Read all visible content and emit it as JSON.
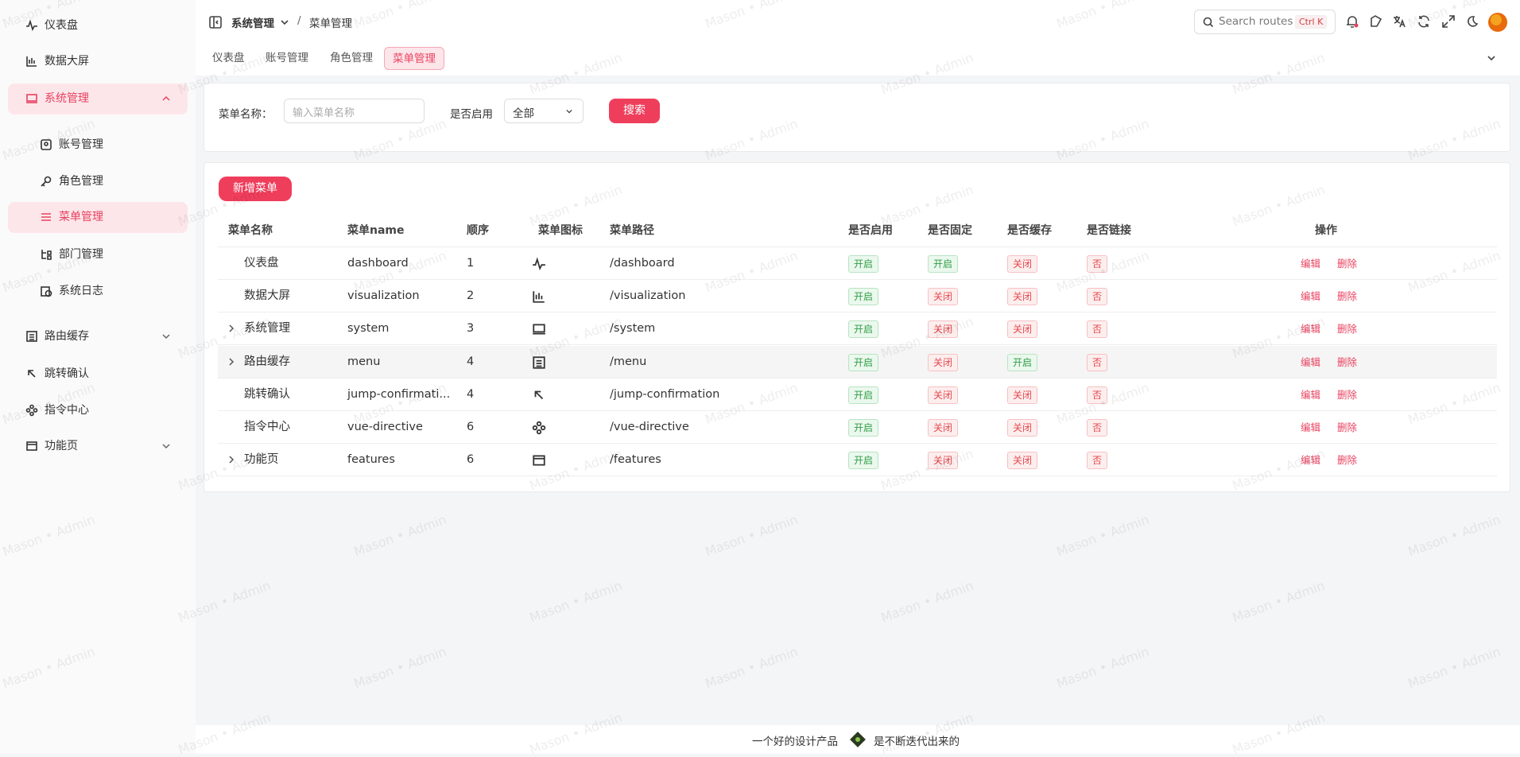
{
  "watermark": "Mason • Admin",
  "sidebar": {
    "items": [
      {
        "label": "仪表盘"
      },
      {
        "label": "数据大屏"
      },
      {
        "label": "系统管理",
        "children": [
          {
            "label": "账号管理"
          },
          {
            "label": "角色管理"
          },
          {
            "label": "菜单管理"
          },
          {
            "label": "部门管理"
          },
          {
            "label": "系统日志"
          }
        ]
      },
      {
        "label": "路由缓存"
      },
      {
        "label": "跳转确认"
      },
      {
        "label": "指令中心"
      },
      {
        "label": "功能页"
      }
    ]
  },
  "header": {
    "breadcrumb": [
      "系统管理",
      "/",
      "菜单管理"
    ],
    "search": "Search routes",
    "shortcut": "Ctrl K"
  },
  "tabs": [
    "仪表盘",
    "账号管理",
    "角色管理",
    "菜单管理"
  ],
  "filter": {
    "name_label": "菜单名称：",
    "name_placeholder": "输入菜单名称",
    "enabled_label": "是否启用",
    "enabled_value": "全部",
    "search_button": "搜索"
  },
  "table": {
    "add_button": "新增菜单",
    "columns": [
      "菜单名称",
      "菜单name",
      "顺序",
      "菜单图标",
      "菜单路径",
      "是否启用",
      "是否固定",
      "是否缓存",
      "是否链接",
      "操作"
    ],
    "actions": [
      "编辑",
      "删除"
    ],
    "rows": [
      {
        "name": "仪表盘",
        "key": "dashboard",
        "order": 1,
        "path": "/dashboard",
        "enabled": "开启",
        "fixed": "开启",
        "cache": "关闭",
        "link": "否"
      },
      {
        "name": "数据大屏",
        "key": "visualization",
        "order": 2,
        "path": "/visualization",
        "enabled": "开启",
        "fixed": "关闭",
        "cache": "关闭",
        "link": "否"
      },
      {
        "name": "系统管理",
        "key": "system",
        "order": 3,
        "path": "/system",
        "enabled": "开启",
        "fixed": "关闭",
        "cache": "关闭",
        "link": "否"
      },
      {
        "name": "路由缓存",
        "key": "menu",
        "order": 4,
        "path": "/menu",
        "enabled": "开启",
        "fixed": "关闭",
        "cache": "开启",
        "link": "否"
      },
      {
        "name": "跳转确认",
        "key": "jump-confirmati...",
        "order": 4,
        "path": "/jump-confirmation",
        "enabled": "开启",
        "fixed": "关闭",
        "cache": "关闭",
        "link": "否"
      },
      {
        "name": "指令中心",
        "key": "vue-directive",
        "order": 6,
        "path": "/vue-directive",
        "enabled": "开启",
        "fixed": "关闭",
        "cache": "关闭",
        "link": "否"
      },
      {
        "name": "功能页",
        "key": "features",
        "order": 6,
        "path": "/features",
        "enabled": "开启",
        "fixed": "关闭",
        "cache": "关闭",
        "link": "否"
      }
    ]
  },
  "footer": [
    "一个好的设计产品",
    "是不断迭代出来的"
  ]
}
